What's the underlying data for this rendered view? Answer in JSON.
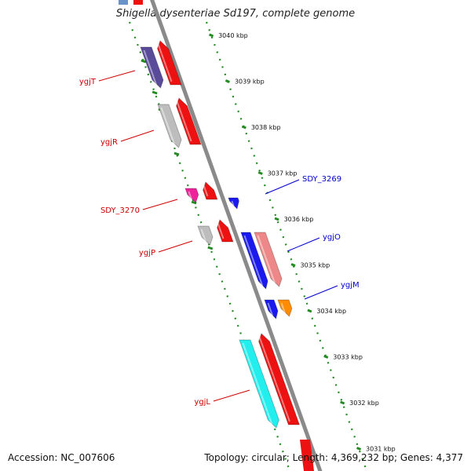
{
  "title": "Shigella dysenteriae Sd197, complete genome",
  "footer": {
    "accession": "Accession: NC_007606",
    "summary": "Topology: circular; Length: 4,369,232 bp; Genes: 4,377"
  },
  "colors": {
    "backbone": "#8c8c8c",
    "tick_dots": "#228b22",
    "reverse_label": "#cc0000",
    "forward_label": "#0000cc"
  },
  "kbp_ticks": [
    "3040 kbp",
    "3039 kbp",
    "3038 kbp",
    "3037 kbp",
    "3036 kbp",
    "3035 kbp",
    "3034 kbp",
    "3033 kbp",
    "3032 kbp",
    "3031 kbp"
  ],
  "genes": [
    {
      "name": "ygjT",
      "strand": "reverse",
      "label_color": "#cc0000",
      "feature_colors": [
        "#5a4a9a",
        "#ee1111"
      ]
    },
    {
      "name": "ygjR",
      "strand": "reverse",
      "label_color": "#cc0000",
      "feature_colors": [
        "#bdbdbd",
        "#ee1111"
      ]
    },
    {
      "name": "SDY_3270",
      "strand": "reverse",
      "label_color": "#cc0000",
      "feature_colors": [
        "#ee2299",
        "#ee1111"
      ]
    },
    {
      "name": "ygjP",
      "strand": "reverse",
      "label_color": "#cc0000",
      "feature_colors": [
        "#bdbdbd",
        "#ee1111"
      ]
    },
    {
      "name": "ygjL",
      "strand": "reverse",
      "label_color": "#cc0000",
      "feature_colors": [
        "#22eeee",
        "#ee1111"
      ]
    },
    {
      "name": "SDY_3269",
      "strand": "forward",
      "label_color": "#0000cc",
      "feature_colors": [
        "#1a1aee"
      ]
    },
    {
      "name": "ygjO",
      "strand": "forward",
      "label_color": "#0000cc",
      "feature_colors": [
        "#1a1aee",
        "#ee8888"
      ]
    },
    {
      "name": "ygjM",
      "strand": "forward",
      "label_color": "#0000cc",
      "feature_colors": [
        "#1a1aee",
        "#ff8c00"
      ]
    }
  ]
}
